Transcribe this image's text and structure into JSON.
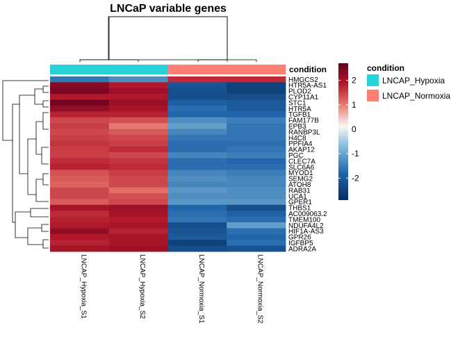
{
  "chart_data": {
    "type": "heatmap",
    "title": "LNCaP variable genes",
    "columns": [
      "LNCAP_Hypoxia_S1",
      "LNCAP_Hypoxia_S2",
      "LNCAP_Normoxia_S1",
      "LNCAP_Normoxia_S2"
    ],
    "rows": [
      "HMGCS2",
      "HTR5A-AS1",
      "PLOD2",
      "CYP11A1",
      "STC1",
      "HTR5A",
      "TGFB1",
      "FAM177B",
      "EPB3",
      "RANBP3L",
      "H4C8",
      "PPFIA4",
      "AKAP12",
      "PGC",
      "CLEC7A",
      "SLC6A6",
      "MYOD1",
      "SEMG2",
      "ATOH8",
      "RAB31",
      "UCA1",
      "GPER1",
      "THBS1",
      "AC009063.2",
      "TMEM100",
      "NDUFA4L2",
      "HIF1A-AS3",
      "GPR26",
      "IGFBP5",
      "ADRA2A"
    ],
    "values": [
      [
        -1.8,
        -1.5,
        1.8,
        1.8
      ],
      [
        2.4,
        2.0,
        -2.3,
        -2.6
      ],
      [
        2.5,
        2.2,
        -2.4,
        -2.6
      ],
      [
        2.0,
        2.0,
        -2.4,
        -2.4
      ],
      [
        2.6,
        2.2,
        -2.1,
        -2.2
      ],
      [
        2.3,
        2.1,
        -1.9,
        -2.2
      ],
      [
        1.9,
        1.9,
        -2.0,
        -2.0
      ],
      [
        1.5,
        1.4,
        -1.5,
        -1.7
      ],
      [
        1.6,
        1.0,
        -1.3,
        -1.8
      ],
      [
        1.5,
        1.3,
        -1.6,
        -1.8
      ],
      [
        1.6,
        1.5,
        -1.8,
        -1.8
      ],
      [
        1.7,
        1.6,
        -1.9,
        -1.9
      ],
      [
        1.6,
        1.8,
        -1.9,
        -1.8
      ],
      [
        1.6,
        1.5,
        -1.6,
        -1.7
      ],
      [
        1.8,
        1.7,
        -1.9,
        -2.0
      ],
      [
        1.9,
        1.8,
        -1.9,
        -1.9
      ],
      [
        1.4,
        1.6,
        -1.6,
        -1.7
      ],
      [
        1.3,
        1.5,
        -1.5,
        -1.6
      ],
      [
        1.2,
        1.5,
        -1.6,
        -1.6
      ],
      [
        1.5,
        1.1,
        -1.4,
        -1.5
      ],
      [
        1.5,
        1.4,
        -1.5,
        -1.5
      ],
      [
        1.3,
        1.5,
        -1.4,
        -1.4
      ],
      [
        2.1,
        2.2,
        -2.0,
        -2.4
      ],
      [
        1.8,
        2.1,
        -1.9,
        -2.1
      ],
      [
        1.9,
        2.0,
        -1.8,
        -1.9
      ],
      [
        2.0,
        2.1,
        -2.4,
        -1.3
      ],
      [
        2.3,
        1.9,
        -2.3,
        -1.9
      ],
      [
        2.0,
        2.1,
        -2.2,
        -2.0
      ],
      [
        1.9,
        2.1,
        -2.6,
        -1.9
      ],
      [
        2.1,
        2.2,
        -2.4,
        -2.3
      ]
    ],
    "annotation": {
      "name": "condition",
      "values": [
        "LNCAP_Hypoxia",
        "LNCAP_Hypoxia",
        "LNCAP_Normoxia",
        "LNCAP_Normoxia"
      ],
      "legend": [
        {
          "label": "LNCAP_Hypoxia",
          "color": "#27D2D8"
        },
        {
          "label": "LNCAP_Normoxia",
          "color": "#FF7F74"
        }
      ]
    },
    "color_scale": {
      "min": -2.9,
      "max": 2.7,
      "ticks": [
        2,
        1,
        0,
        -1,
        -2
      ],
      "low_color": "#053061",
      "mid_color": "#F7F7F7",
      "high_color": "#67001F"
    }
  }
}
